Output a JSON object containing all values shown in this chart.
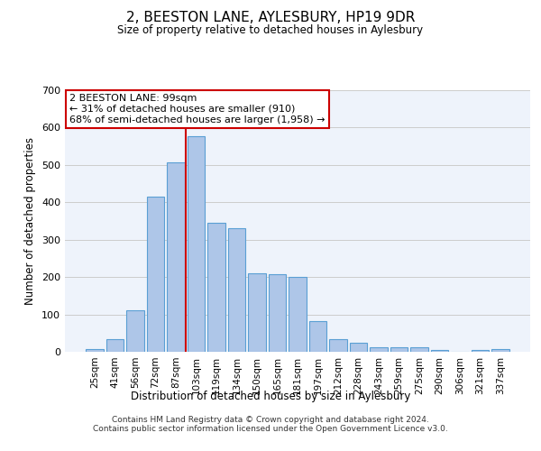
{
  "title": "2, BEESTON LANE, AYLESBURY, HP19 9DR",
  "subtitle": "Size of property relative to detached houses in Aylesbury",
  "xlabel": "Distribution of detached houses by size in Aylesbury",
  "ylabel": "Number of detached properties",
  "categories": [
    "25sqm",
    "41sqm",
    "56sqm",
    "72sqm",
    "87sqm",
    "103sqm",
    "119sqm",
    "134sqm",
    "150sqm",
    "165sqm",
    "181sqm",
    "197sqm",
    "212sqm",
    "228sqm",
    "243sqm",
    "259sqm",
    "275sqm",
    "290sqm",
    "306sqm",
    "321sqm",
    "337sqm"
  ],
  "values": [
    8,
    33,
    112,
    415,
    507,
    577,
    345,
    330,
    210,
    208,
    200,
    82,
    33,
    24,
    13,
    13,
    12,
    5,
    0,
    5,
    8
  ],
  "bar_color": "#aec6e8",
  "bar_edgecolor": "#5a9fd4",
  "bar_linewidth": 0.8,
  "ylim": [
    0,
    700
  ],
  "yticks": [
    0,
    100,
    200,
    300,
    400,
    500,
    600,
    700
  ],
  "grid_color": "#cccccc",
  "background_color": "#eef3fb",
  "vline_x_index": 5,
  "vline_color": "#cc0000",
  "annotation_text": "2 BEESTON LANE: 99sqm\n← 31% of detached houses are smaller (910)\n68% of semi-detached houses are larger (1,958) →",
  "annotation_box_edgecolor": "#cc0000",
  "annotation_box_facecolor": "#ffffff",
  "footer_line1": "Contains HM Land Registry data © Crown copyright and database right 2024.",
  "footer_line2": "Contains public sector information licensed under the Open Government Licence v3.0."
}
